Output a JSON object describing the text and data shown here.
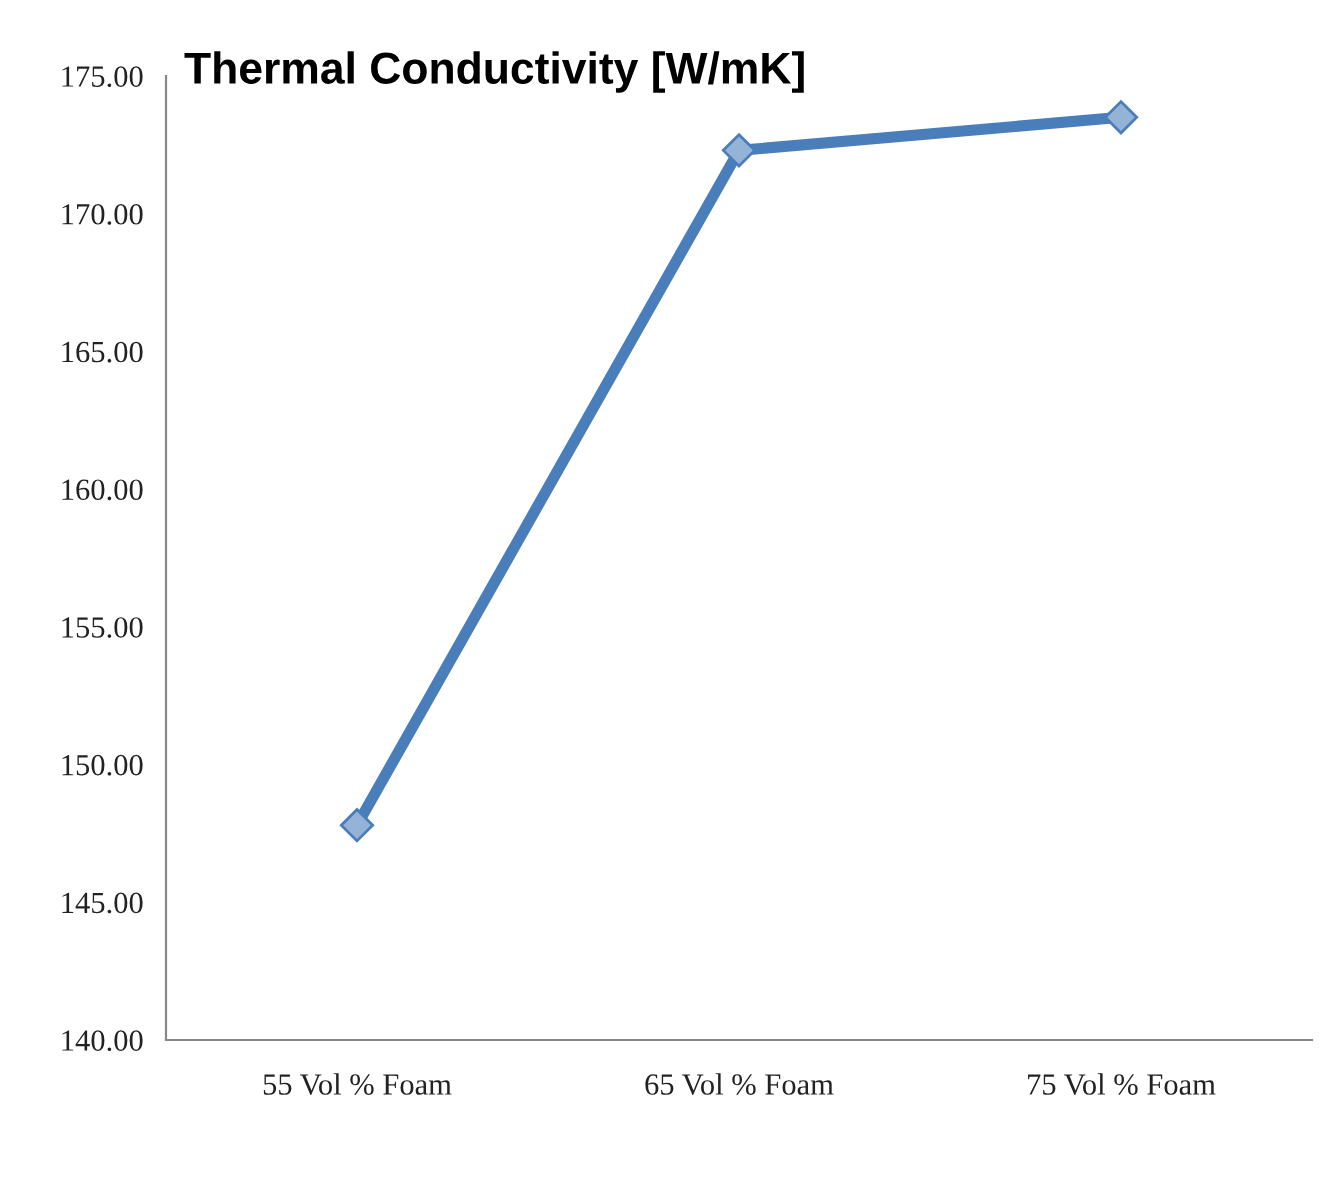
{
  "chart_data": {
    "type": "line",
    "title": "Thermal Conductivity [W/mK]",
    "categories": [
      "55 Vol % Foam",
      "65 Vol % Foam",
      "75 Vol % Foam"
    ],
    "series": [
      {
        "color": "#4a7ebb",
        "values": [
          147.8,
          172.3,
          173.5
        ]
      }
    ],
    "ylim": [
      140,
      175
    ],
    "yticks": [
      {
        "value": 140,
        "label": "140.00"
      },
      {
        "value": 145,
        "label": "145.00"
      },
      {
        "value": 150,
        "label": "150.00"
      },
      {
        "value": 155,
        "label": "155.00"
      },
      {
        "value": 160,
        "label": "160.00"
      },
      {
        "value": 165,
        "label": "165.00"
      },
      {
        "value": 170,
        "label": "170.00"
      },
      {
        "value": 175,
        "label": "175.00"
      }
    ],
    "marker": "diamond",
    "line_style": "solid",
    "grid": false,
    "legend": false
  }
}
